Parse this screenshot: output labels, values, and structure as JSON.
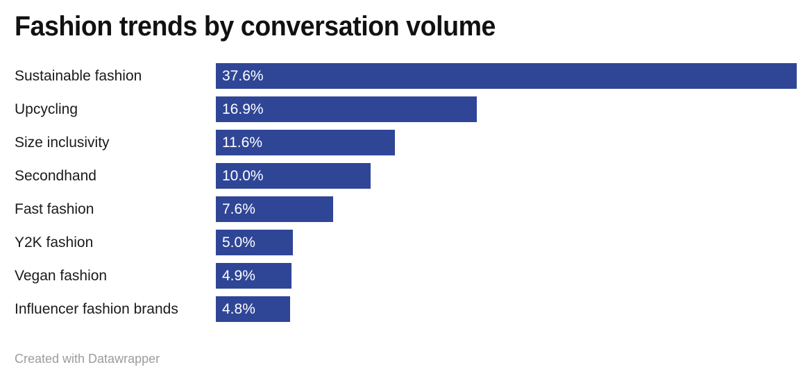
{
  "title": "Fashion trends by conversation volume",
  "footer": {
    "text": "Created with Datawrapper"
  },
  "colors": {
    "bar": "#2F4697",
    "title_text": "#111111",
    "category_text": "#1a1a1a",
    "value_text": "#ffffff",
    "footer_text": "#9c9c9c",
    "background": "#ffffff"
  },
  "chart_data": {
    "type": "bar",
    "orientation": "horizontal",
    "title": "Fashion trends by conversation volume",
    "categories": [
      "Sustainable fashion",
      "Upcycling",
      "Size inclusivity",
      "Secondhand",
      "Fast fashion",
      "Y2K fashion",
      "Vegan fashion",
      "Influencer fashion brands"
    ],
    "values": [
      37.6,
      16.9,
      11.6,
      10.0,
      7.6,
      5.0,
      4.9,
      4.8
    ],
    "value_labels": [
      "37.6%",
      "16.9%",
      "11.6%",
      "10.0%",
      "7.6%",
      "5.0%",
      "4.9%",
      "4.8%"
    ],
    "unit": "%",
    "xlabel": "",
    "ylabel": "",
    "xlim": [
      0,
      37.6
    ],
    "grid": false,
    "legend": false,
    "value_label_position": "inside-start",
    "bar_color": "#2F4697"
  }
}
